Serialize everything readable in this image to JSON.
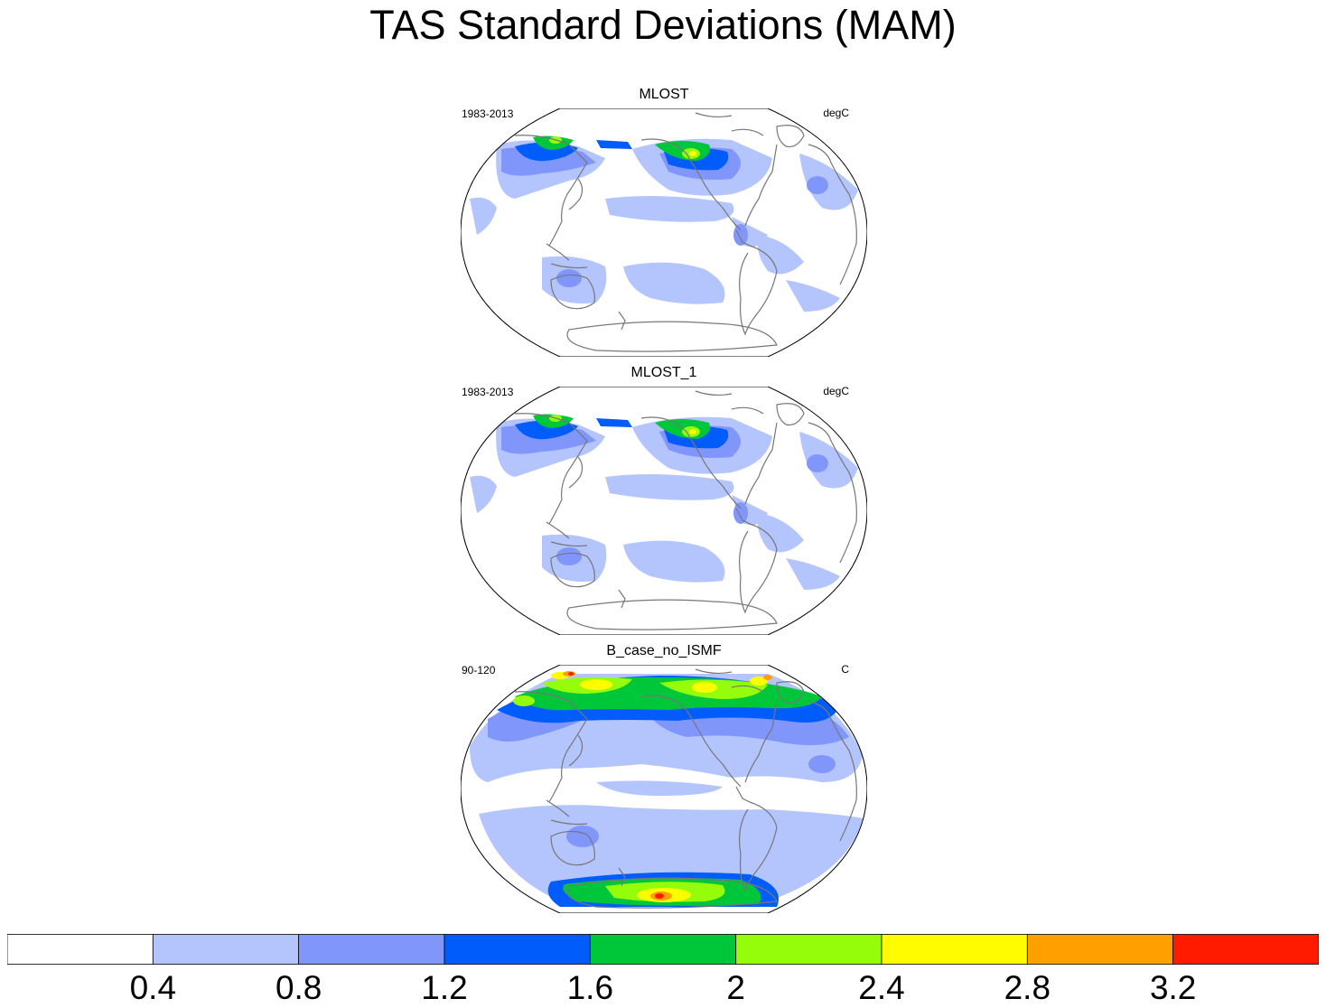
{
  "title": "TAS Standard Deviations (MAM)",
  "panels": [
    {
      "name": "MLOST",
      "left": "1983-2013",
      "right": "degC",
      "variant": "obs"
    },
    {
      "name": "MLOST_1",
      "left": "1983-2013",
      "right": "degC",
      "variant": "obs"
    },
    {
      "name": "B_case_no_ISMF",
      "left": "90-120",
      "right": "C",
      "variant": "model"
    }
  ],
  "colorbar": {
    "colors": [
      "#ffffff",
      "#b4c4fc",
      "#8096fb",
      "#005dfc",
      "#00c63a",
      "#95fc0a",
      "#fffc00",
      "#ffa000",
      "#ff1b00"
    ],
    "labels": [
      "0.4",
      "0.8",
      "1.2",
      "1.6",
      "2",
      "2.4",
      "2.8",
      "3.2"
    ]
  }
}
